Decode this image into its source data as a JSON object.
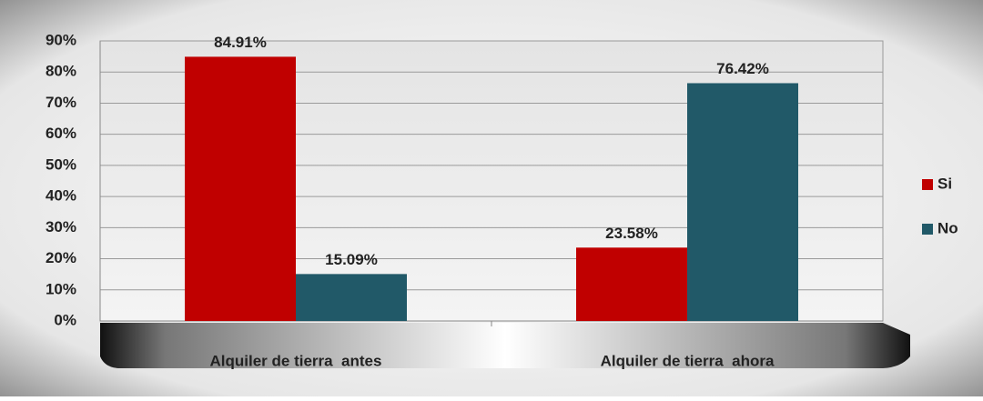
{
  "chart_data": {
    "type": "bar",
    "categories": [
      "Alquiler de tierra  antes",
      "Alquiler de tierra  ahora"
    ],
    "series": [
      {
        "name": "Si",
        "color": "#c00000",
        "values": [
          84.91,
          23.58
        ],
        "value_labels": [
          "84.91%",
          "23.58%"
        ]
      },
      {
        "name": "No",
        "color": "#215968",
        "values": [
          15.09,
          76.42
        ],
        "value_labels": [
          "15.09%",
          "76.42%"
        ]
      }
    ],
    "ylim": [
      0,
      90
    ],
    "yticks": [
      {
        "value": 0,
        "label": "0%"
      },
      {
        "value": 10,
        "label": "10%"
      },
      {
        "value": 20,
        "label": "20%"
      },
      {
        "value": 30,
        "label": "30%"
      },
      {
        "value": 40,
        "label": "40%"
      },
      {
        "value": 50,
        "label": "50%"
      },
      {
        "value": 60,
        "label": "60%"
      },
      {
        "value": 70,
        "label": "70%"
      },
      {
        "value": 80,
        "label": "80%"
      },
      {
        "value": 90,
        "label": "90%"
      }
    ],
    "grid": true,
    "legend": "right"
  }
}
